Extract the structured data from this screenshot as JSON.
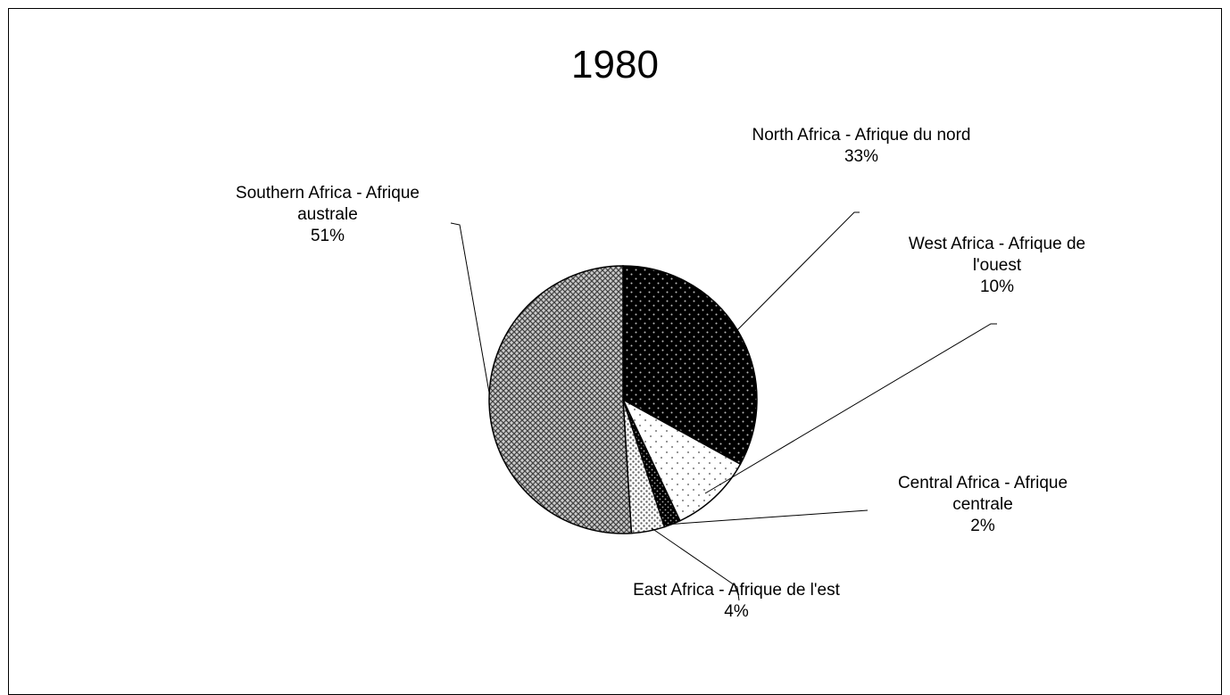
{
  "chart_data": {
    "type": "pie",
    "title": "1980",
    "categories": [
      "North Africa - Afrique du nord",
      "West Africa - Afrique de l'ouest",
      "Central Africa - Afrique centrale",
      "East Africa - Afrique de l'est",
      "Southern Africa - Afrique australe"
    ],
    "values": [
      33,
      10,
      2,
      4,
      51
    ],
    "value_labels": [
      "33%",
      "10%",
      "2%",
      "4%",
      "51%"
    ]
  }
}
